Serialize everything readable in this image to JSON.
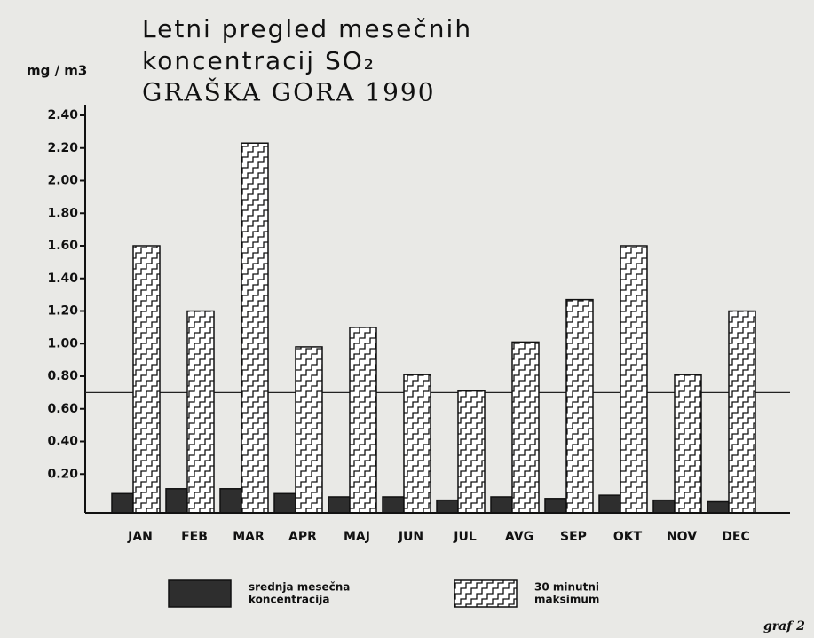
{
  "chart_data": {
    "type": "bar",
    "title": [
      "Letni pregled mesečnih",
      "koncentracij SO₂",
      "GRAŠKA GORA 1990"
    ],
    "y_label": "mg / m3",
    "categories": [
      "JAN",
      "FEB",
      "MAR",
      "APR",
      "MAJ",
      "JUN",
      "JUL",
      "AVG",
      "SEP",
      "OKT",
      "NOV",
      "DEC"
    ],
    "series": [
      {
        "name": [
          "srednja mesečna",
          "koncentracija"
        ],
        "color": "#2e2e2e",
        "hatched": false,
        "values": [
          0.08,
          0.11,
          0.11,
          0.08,
          0.06,
          0.06,
          0.04,
          0.06,
          0.05,
          0.07,
          0.04,
          0.03
        ]
      },
      {
        "name": [
          "30 minutni",
          "maksimum"
        ],
        "color": "#ffffff",
        "hatched": true,
        "values": [
          1.6,
          1.2,
          2.23,
          0.98,
          1.1,
          0.81,
          0.71,
          1.01,
          1.27,
          1.6,
          0.81,
          1.2
        ]
      }
    ],
    "reference_line": 0.7,
    "ylim": [
      0,
      2.4
    ],
    "yticks": [
      {
        "value": 0.2,
        "label": "0.20"
      },
      {
        "value": 0.4,
        "label": "0.40"
      },
      {
        "value": 0.6,
        "label": "0.60"
      },
      {
        "value": 0.8,
        "label": "0.80"
      },
      {
        "value": 1.0,
        "label": "1.00"
      },
      {
        "value": 1.2,
        "label": "1.20"
      },
      {
        "value": 1.4,
        "label": "1.40"
      },
      {
        "value": 1.6,
        "label": "1.60"
      },
      {
        "value": 1.8,
        "label": "1.80"
      },
      {
        "value": 2.0,
        "label": "2.00"
      },
      {
        "value": 2.2,
        "label": "2.20"
      },
      {
        "value": 2.4,
        "label": "2.40"
      }
    ],
    "caption": "graf 2"
  }
}
